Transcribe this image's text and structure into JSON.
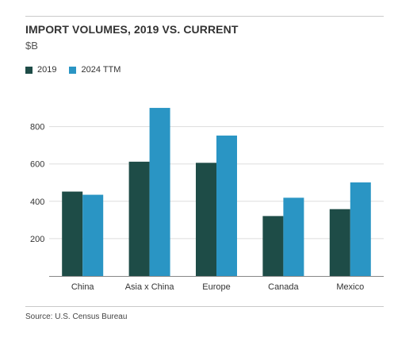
{
  "title": "IMPORT VOLUMES, 2019 VS. CURRENT",
  "unit": "$B",
  "source": "Source: U.S. Census Bureau",
  "colors": {
    "series_2019": "#1e4c47",
    "series_ttm": "#2a95c4",
    "gridline": "#dddddd",
    "axis": "#888888"
  },
  "chart_data": {
    "type": "bar",
    "categories": [
      "China",
      "Asia x China",
      "Europe",
      "Canada",
      "Mexico"
    ],
    "series": [
      {
        "name": "2019",
        "values": [
          452,
          612,
          606,
          321,
          358
        ]
      },
      {
        "name": "2024 TTM",
        "values": [
          435,
          900,
          752,
          419,
          501
        ]
      }
    ],
    "yticks": [
      "200",
      "400",
      "600",
      "800"
    ],
    "ylim": [
      0,
      950
    ],
    "grid": true,
    "legend": "top-left",
    "title": "IMPORT VOLUMES, 2019 VS. CURRENT",
    "ylabel": "$B"
  }
}
